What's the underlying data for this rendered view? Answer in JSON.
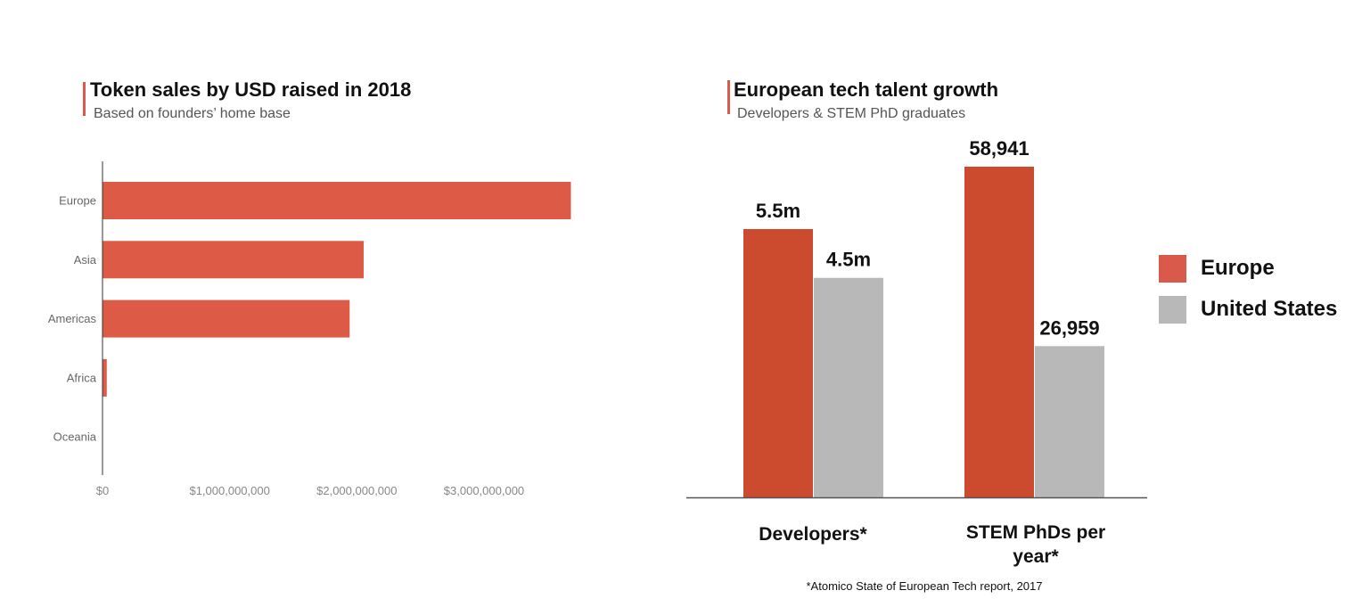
{
  "left": {
    "title": "Token sales by USD raised in 2018",
    "subtitle": "Based on founders’ home base"
  },
  "right": {
    "title": "European tech talent growth",
    "subtitle": "Developers & STEM PhD graduates",
    "footnote": "*Atomico State of European Tech report, 2017"
  },
  "colors": {
    "accent": "#d9594a",
    "left_bar": "#dc5a46",
    "europe": "#cc4a2d",
    "us": "#b8b8b8"
  },
  "chart_data": [
    {
      "type": "bar",
      "orientation": "horizontal",
      "title": "Token sales by USD raised in 2018",
      "subtitle": "Based on founders’ home base",
      "categories": [
        "Europe",
        "Asia",
        "Americas",
        "Africa",
        "Oceania"
      ],
      "values": [
        3680000000,
        2050000000,
        1940000000,
        30000000,
        0
      ],
      "xlim": [
        0,
        4000000000
      ],
      "xticks": [
        0,
        1000000000,
        2000000000,
        3000000000
      ],
      "xtick_labels": [
        "$0",
        "$1,000,000,000",
        "$2,000,000,000",
        "$3,000,000,000"
      ],
      "grid": false
    },
    {
      "type": "bar",
      "orientation": "vertical",
      "title": "European tech talent growth",
      "subtitle": "Developers & STEM PhD graduates",
      "categories": [
        "Developers*",
        "STEM PhDs per year*"
      ],
      "series": [
        {
          "name": "Europe",
          "values": [
            5.5,
            58941
          ],
          "labels": [
            "5.5m",
            "58,941"
          ]
        },
        {
          "name": "United States",
          "values": [
            4.5,
            26959
          ],
          "labels": [
            "4.5m",
            "26,959"
          ]
        }
      ],
      "legend": "right",
      "grid": false
    }
  ]
}
